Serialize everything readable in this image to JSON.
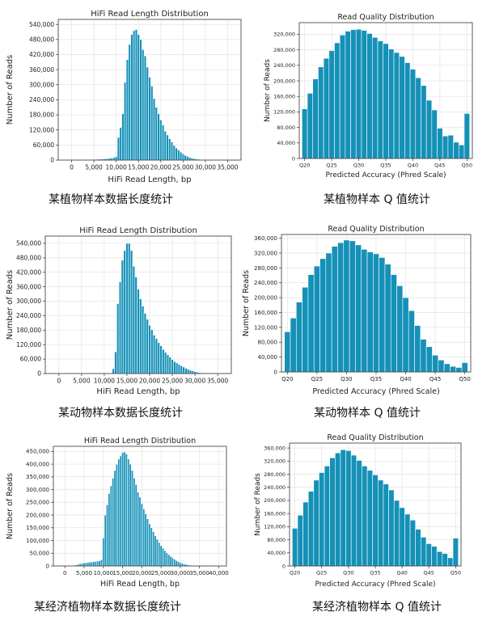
{
  "colors": {
    "bar": "#1591b8",
    "bar_edge": "#ffffff",
    "grid": "#e3e3e3",
    "frame": "#333333"
  },
  "chart_data": [
    {
      "type": "bar",
      "title": "HiFi Read Length Distribution",
      "xlabel": "HiFi Read Length, bp",
      "ylabel": "Number of Reads",
      "xlim": [
        -3000,
        38000
      ],
      "ylim": [
        0,
        560000
      ],
      "xticks": [
        0,
        5000,
        10000,
        15000,
        20000,
        25000,
        30000,
        35000
      ],
      "xtick_labels": [
        "0",
        "5,000",
        "10,000",
        "15,000",
        "20,000",
        "25,000",
        "30,000",
        "35,000"
      ],
      "yticks": [
        0,
        60000,
        120000,
        180000,
        240000,
        300000,
        360000,
        420000,
        480000,
        540000
      ],
      "ytick_labels": [
        "0",
        "60,000",
        "120,000",
        "180,000",
        "240,000",
        "300,000",
        "360,000",
        "420,000",
        "480,000",
        "540,000"
      ],
      "bin_width": 500,
      "x": [
        3000,
        3500,
        4000,
        4500,
        5000,
        5500,
        6000,
        6500,
        7000,
        7500,
        8000,
        8500,
        9000,
        9500,
        10000,
        10500,
        11000,
        11500,
        12000,
        12500,
        13000,
        13500,
        14000,
        14500,
        15000,
        15500,
        16000,
        16500,
        17000,
        17500,
        18000,
        18500,
        19000,
        19500,
        20000,
        20500,
        21000,
        21500,
        22000,
        22500,
        23000,
        23500,
        24000,
        24500,
        25000,
        25500,
        26000,
        26500,
        27000,
        27500,
        28000,
        28500,
        29000,
        29500,
        30000
      ],
      "values": [
        1500,
        2000,
        2000,
        2500,
        3000,
        3000,
        3500,
        4000,
        4500,
        5000,
        6000,
        7000,
        8000,
        10000,
        14000,
        90000,
        130000,
        185000,
        310000,
        400000,
        460000,
        500000,
        515000,
        520000,
        500000,
        480000,
        440000,
        415000,
        370000,
        330000,
        295000,
        245000,
        210000,
        185000,
        160000,
        140000,
        115000,
        100000,
        85000,
        72000,
        58000,
        48000,
        40000,
        32000,
        25000,
        19000,
        15000,
        11000,
        8000,
        6000,
        4500,
        3500,
        2500,
        2000,
        1500
      ],
      "caption": "某植物样本数据长度统计"
    },
    {
      "type": "bar",
      "title": "Read Quality Distribution",
      "xlabel": "Predicted Accuracy (Phred Scale)",
      "ylabel": "Number of Reads",
      "xlim": [
        19,
        51
      ],
      "ylim": [
        0,
        350000
      ],
      "xticks": [
        20,
        25,
        30,
        35,
        40,
        45,
        50
      ],
      "xtick_labels": [
        "Q20",
        "Q25",
        "Q30",
        "Q35",
        "Q40",
        "Q45",
        "Q50"
      ],
      "yticks": [
        0,
        40000,
        80000,
        120000,
        160000,
        200000,
        240000,
        280000,
        320000
      ],
      "ytick_labels": [
        "0",
        "40,000",
        "80,000",
        "120,000",
        "160,000",
        "200,000",
        "240,000",
        "280,000",
        "320,000"
      ],
      "bin_width": 1,
      "x": [
        20,
        21,
        22,
        23,
        24,
        25,
        26,
        27,
        28,
        29,
        30,
        31,
        32,
        33,
        34,
        35,
        36,
        37,
        38,
        39,
        40,
        41,
        42,
        43,
        44,
        45,
        46,
        47,
        48,
        49,
        50
      ],
      "values": [
        128000,
        168000,
        205000,
        236000,
        258000,
        278000,
        298000,
        318000,
        328000,
        332000,
        333000,
        330000,
        322000,
        312000,
        303000,
        296000,
        282000,
        273000,
        263000,
        247000,
        230000,
        208000,
        188000,
        150000,
        125000,
        78000,
        58000,
        60000,
        42000,
        35000,
        116000
      ],
      "caption": "某植物样本 Q 值统计"
    },
    {
      "type": "bar",
      "title": "HiFi Read Length Distribution",
      "xlabel": "HiFi Read Length, bp",
      "ylabel": "Number of Reads",
      "xlim": [
        -3000,
        38000
      ],
      "ylim": [
        0,
        570000
      ],
      "xticks": [
        0,
        5000,
        10000,
        15000,
        20000,
        25000,
        30000,
        35000
      ],
      "xtick_labels": [
        "0",
        "5,000",
        "10,000",
        "15,000",
        "20,000",
        "25,000",
        "30,000",
        "35,000"
      ],
      "yticks": [
        0,
        60000,
        120000,
        180000,
        240000,
        300000,
        360000,
        420000,
        480000,
        540000
      ],
      "ytick_labels": [
        "0",
        "60,000",
        "120,000",
        "180,000",
        "240,000",
        "300,000",
        "360,000",
        "420,000",
        "480,000",
        "540,000"
      ],
      "bin_width": 500,
      "x": [
        12000,
        12500,
        13000,
        13500,
        14000,
        14500,
        15000,
        15500,
        16000,
        16500,
        17000,
        17500,
        18000,
        18500,
        19000,
        19500,
        20000,
        20500,
        21000,
        21500,
        22000,
        22500,
        23000,
        23500,
        24000,
        24500,
        25000,
        25500,
        26000,
        26500,
        27000,
        27500,
        28000,
        28500,
        29000,
        29500,
        30000,
        30500,
        31000,
        31500,
        32000
      ],
      "values": [
        20000,
        90000,
        290000,
        380000,
        470000,
        510000,
        540000,
        540000,
        510000,
        445000,
        400000,
        350000,
        310000,
        280000,
        250000,
        225000,
        200000,
        182000,
        160000,
        145000,
        128000,
        115000,
        100000,
        88000,
        78000,
        68000,
        58000,
        50000,
        44000,
        38000,
        32000,
        27000,
        22000,
        18000,
        14000,
        11000,
        8000,
        6000,
        4000,
        3000,
        2000
      ],
      "caption": "某动物样本数据长度统计"
    },
    {
      "type": "bar",
      "title": "Read Quality Distribution",
      "xlabel": "Predicted Accuracy (Phred Scale)",
      "ylabel": "Number of Reads",
      "xlim": [
        19,
        51
      ],
      "ylim": [
        0,
        370000
      ],
      "xticks": [
        20,
        25,
        30,
        35,
        40,
        45,
        50
      ],
      "xtick_labels": [
        "Q20",
        "Q25",
        "Q30",
        "Q35",
        "Q40",
        "Q45",
        "Q50"
      ],
      "yticks": [
        0,
        40000,
        80000,
        120000,
        160000,
        200000,
        240000,
        280000,
        320000,
        360000
      ],
      "ytick_labels": [
        "0",
        "40,000",
        "80,000",
        "120,000",
        "160,000",
        "200,000",
        "240,000",
        "280,000",
        "320,000",
        "360,000"
      ],
      "bin_width": 1,
      "x": [
        20,
        21,
        22,
        23,
        24,
        25,
        26,
        27,
        28,
        29,
        30,
        31,
        32,
        33,
        34,
        35,
        36,
        37,
        38,
        39,
        40,
        41,
        42,
        43,
        44,
        45,
        46,
        47,
        48,
        49,
        50
      ],
      "values": [
        108000,
        145000,
        188000,
        228000,
        262000,
        285000,
        305000,
        320000,
        338000,
        348000,
        355000,
        353000,
        342000,
        330000,
        323000,
        318000,
        308000,
        290000,
        262000,
        232000,
        200000,
        165000,
        125000,
        88000,
        68000,
        45000,
        32000,
        22000,
        15000,
        12000,
        25000
      ],
      "caption": "某动物样本 Q 值统计"
    },
    {
      "type": "bar",
      "title": "HiFi Read Length Distribution",
      "xlabel": "HiFi Read Length, bp",
      "ylabel": "Number of Reads",
      "xlim": [
        -3000,
        42000
      ],
      "ylim": [
        0,
        470000
      ],
      "xticks": [
        0,
        5000,
        10000,
        15000,
        20000,
        25000,
        30000,
        35000,
        40000
      ],
      "xtick_labels": [
        "0",
        "5,000",
        "10,000",
        "15,000",
        "20,000",
        "25,000",
        "30,000",
        "35,000",
        "40,000"
      ],
      "yticks": [
        0,
        50000,
        100000,
        150000,
        200000,
        250000,
        300000,
        350000,
        400000,
        450000
      ],
      "ytick_labels": [
        "0",
        "50,000",
        "100,000",
        "150,000",
        "200,000",
        "250,000",
        "300,000",
        "350,000",
        "400,000",
        "450,000"
      ],
      "bin_width": 500,
      "x": [
        2500,
        3000,
        3500,
        4000,
        4500,
        5000,
        5500,
        6000,
        6500,
        7000,
        7500,
        8000,
        8500,
        9000,
        9500,
        10000,
        10500,
        11000,
        11500,
        12000,
        12500,
        13000,
        13500,
        14000,
        14500,
        15000,
        15500,
        16000,
        16500,
        17000,
        17500,
        18000,
        18500,
        19000,
        19500,
        20000,
        20500,
        21000,
        21500,
        22000,
        22500,
        23000,
        23500,
        24000,
        24500,
        25000,
        25500,
        26000,
        26500,
        27000,
        27500,
        28000,
        28500,
        29000,
        29500,
        30000,
        30500,
        31000,
        31500,
        32000,
        32500,
        33000
      ],
      "values": [
        2000,
        4000,
        7000,
        9000,
        10000,
        12000,
        13000,
        14000,
        15000,
        16000,
        17000,
        18000,
        19000,
        20000,
        25000,
        110000,
        200000,
        240000,
        285000,
        315000,
        345000,
        375000,
        400000,
        420000,
        432000,
        445000,
        448000,
        440000,
        420000,
        400000,
        375000,
        345000,
        320000,
        290000,
        270000,
        245000,
        225000,
        205000,
        185000,
        165000,
        150000,
        135000,
        118000,
        105000,
        92000,
        80000,
        70000,
        60000,
        52000,
        45000,
        38000,
        32000,
        26000,
        21000,
        17000,
        13000,
        10000,
        8000,
        6000,
        4000,
        3000,
        2000
      ],
      "caption": "某经济植物样本数据长度统计"
    },
    {
      "type": "bar",
      "title": "Read Quality Distribution",
      "xlabel": "Predicted Accuracy (Phred Scale)",
      "ylabel": "Number of Reads",
      "xlim": [
        19,
        51
      ],
      "ylim": [
        0,
        375000
      ],
      "xticks": [
        20,
        25,
        30,
        35,
        40,
        45,
        50
      ],
      "xtick_labels": [
        "Q20",
        "Q25",
        "Q30",
        "Q35",
        "Q40",
        "Q45",
        "Q50"
      ],
      "yticks": [
        0,
        40000,
        80000,
        120000,
        160000,
        200000,
        240000,
        280000,
        320000,
        360000
      ],
      "ytick_labels": [
        "0",
        "40,000",
        "80,000",
        "120,000",
        "160,000",
        "200,000",
        "240,000",
        "280,000",
        "320,000",
        "360,000"
      ],
      "bin_width": 1,
      "x": [
        20,
        21,
        22,
        23,
        24,
        25,
        26,
        27,
        28,
        29,
        30,
        31,
        32,
        33,
        34,
        35,
        36,
        37,
        38,
        39,
        40,
        41,
        42,
        43,
        44,
        45,
        46,
        47,
        48,
        49,
        50
      ],
      "values": [
        115000,
        155000,
        195000,
        228000,
        262000,
        285000,
        305000,
        330000,
        345000,
        355000,
        352000,
        338000,
        322000,
        305000,
        292000,
        278000,
        262000,
        250000,
        232000,
        200000,
        178000,
        158000,
        140000,
        112000,
        88000,
        68000,
        60000,
        44000,
        38000,
        25000,
        85000
      ],
      "caption": "某经济植物样本 Q 值统计"
    }
  ]
}
